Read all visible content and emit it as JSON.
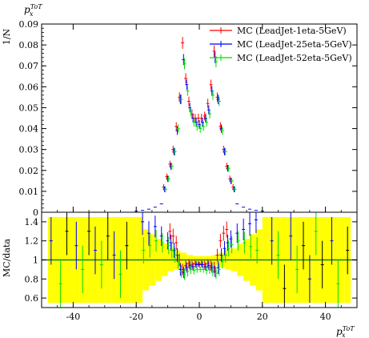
{
  "chart_data": [
    {
      "type": "scatter",
      "panel": "main",
      "title": "p_x^TOT",
      "ylabel": "1/N",
      "xlim": [
        -50,
        50
      ],
      "ylim": [
        0,
        0.09
      ],
      "grid": false,
      "legend_position": "top-right",
      "yticks": [
        0,
        0.01,
        0.02,
        0.03,
        0.04,
        0.05,
        0.06,
        0.07,
        0.08,
        0.09
      ],
      "series": [
        {
          "name": "MC (LeadJet-1eta-5GeV)",
          "color": "#ff0000",
          "x": [
            -11,
            -10,
            -9,
            -8,
            -7,
            -6,
            -5,
            -4,
            -3,
            -2,
            -1,
            0,
            1,
            2,
            3,
            4,
            5,
            6,
            7,
            8,
            9,
            10,
            11
          ],
          "values": [
            0.012,
            0.017,
            0.023,
            0.03,
            0.041,
            0.055,
            0.081,
            0.064,
            0.053,
            0.047,
            0.045,
            0.045,
            0.045,
            0.046,
            0.052,
            0.061,
            0.077,
            0.055,
            0.041,
            0.03,
            0.022,
            0.016,
            0.012
          ]
        },
        {
          "name": "MC (LeadJet-25eta-5GeV)",
          "color": "#0000ff",
          "x": [
            -11,
            -10,
            -9,
            -8,
            -7,
            -6,
            -5,
            -4,
            -3,
            -2,
            -1,
            0,
            1,
            2,
            3,
            4,
            5,
            6,
            7,
            8,
            9,
            10,
            11
          ],
          "values": [
            0.011,
            0.016,
            0.022,
            0.029,
            0.039,
            0.054,
            0.073,
            0.061,
            0.05,
            0.045,
            0.043,
            0.042,
            0.043,
            0.045,
            0.049,
            0.058,
            0.074,
            0.054,
            0.04,
            0.029,
            0.021,
            0.015,
            0.011
          ]
        },
        {
          "name": "MC (LeadJet-52eta-5GeV)",
          "color": "#00dd00",
          "x": [
            -11,
            -10,
            -9,
            -8,
            -7,
            -6,
            -5,
            -4,
            -3,
            -2,
            -1,
            0,
            1,
            2,
            3,
            4,
            5,
            6,
            7,
            8,
            9,
            10,
            11
          ],
          "values": [
            0.011,
            0.016,
            0.022,
            0.029,
            0.04,
            0.054,
            0.071,
            0.058,
            0.048,
            0.043,
            0.041,
            0.04,
            0.041,
            0.043,
            0.047,
            0.056,
            0.072,
            0.053,
            0.039,
            0.029,
            0.021,
            0.015,
            0.011
          ]
        }
      ]
    },
    {
      "type": "scatter",
      "panel": "ratio",
      "xlabel": "p_x^TOT",
      "ylabel": "MC/data",
      "xlim": [
        -50,
        50
      ],
      "ylim": [
        0.5,
        1.5
      ],
      "xticks": [
        -40,
        -20,
        0,
        20,
        40
      ],
      "yticks": [
        0.6,
        0.8,
        1,
        1.2,
        1.4
      ],
      "reference_line": 1,
      "data_band_color": "#ffff00",
      "series": [
        {
          "name": "MC (LeadJet-1eta-5GeV)",
          "color": "#ff0000",
          "x": [
            -9,
            -8,
            -7,
            -6,
            -5,
            -4,
            -3,
            -2,
            -1,
            0,
            1,
            2,
            3,
            4,
            5,
            6,
            7,
            8,
            9
          ],
          "values": [
            1.3,
            1.25,
            1.18,
            1.0,
            0.9,
            0.94,
            0.96,
            0.95,
            0.96,
            0.96,
            0.96,
            0.95,
            0.96,
            0.94,
            0.92,
            1.05,
            1.2,
            1.28,
            1.32
          ]
        },
        {
          "name": "MC (LeadJet-25eta-5GeV)",
          "color": "#0000ff",
          "x": [
            -18,
            -16,
            -14,
            -12,
            -10,
            -9,
            -8,
            -7,
            -6,
            -5,
            -4,
            -3,
            -2,
            -1,
            0,
            1,
            2,
            3,
            4,
            5,
            6,
            7,
            8,
            9,
            10,
            12,
            14,
            16,
            18
          ],
          "values": [
            1.4,
            1.28,
            1.35,
            1.25,
            1.2,
            1.18,
            1.1,
            1.05,
            0.9,
            0.87,
            0.92,
            0.94,
            0.93,
            0.95,
            0.95,
            0.95,
            0.93,
            0.94,
            0.92,
            0.88,
            0.92,
            1.05,
            1.12,
            1.18,
            1.22,
            1.28,
            1.32,
            1.38,
            1.42
          ]
        },
        {
          "name": "MC (LeadJet-52eta-5GeV)",
          "color": "#00dd00",
          "x": [
            -18,
            -16,
            -14,
            -12,
            -10,
            -9,
            -8,
            -7,
            -6,
            -5,
            -4,
            -3,
            -2,
            -1,
            0,
            1,
            2,
            3,
            4,
            5,
            6,
            7,
            8,
            9,
            10,
            12,
            14,
            16,
            18
          ],
          "values": [
            1.1,
            1.15,
            1.2,
            1.18,
            1.15,
            1.1,
            1.05,
            0.98,
            0.88,
            0.85,
            0.88,
            0.9,
            0.89,
            0.9,
            0.9,
            0.9,
            0.89,
            0.9,
            0.88,
            0.86,
            0.9,
            0.98,
            1.05,
            1.12,
            1.16,
            1.2,
            1.18,
            1.14,
            1.1
          ]
        }
      ]
    }
  ]
}
